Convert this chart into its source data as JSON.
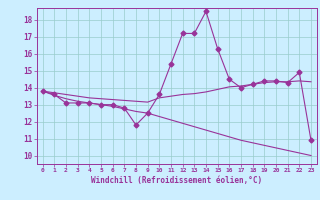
{
  "xlabel": "Windchill (Refroidissement éolien,°C)",
  "ylim": [
    9.5,
    18.7
  ],
  "yticks": [
    10,
    11,
    12,
    13,
    14,
    15,
    16,
    17,
    18
  ],
  "xlim": [
    -0.5,
    23.5
  ],
  "bg_color": "#cceeff",
  "line_color": "#993399",
  "grid_color": "#99cccc",
  "line1_x": [
    0,
    1,
    2,
    3,
    4,
    5,
    6,
    7,
    8,
    9,
    10,
    11,
    12,
    13,
    14,
    15,
    16,
    17,
    18,
    19,
    20,
    21,
    22,
    23
  ],
  "line1_y": [
    13.8,
    13.6,
    13.1,
    13.1,
    13.1,
    13.0,
    13.0,
    12.8,
    11.8,
    12.5,
    13.6,
    15.4,
    17.2,
    17.2,
    18.5,
    16.3,
    14.5,
    14.0,
    14.2,
    14.4,
    14.4,
    14.3,
    14.9,
    10.9
  ],
  "line2_x": [
    0,
    1,
    2,
    3,
    4,
    5,
    6,
    7,
    8,
    9,
    10,
    11,
    12,
    13,
    14,
    15,
    16,
    17,
    18,
    19,
    20,
    21,
    22,
    23
  ],
  "line2_y": [
    13.8,
    13.7,
    13.6,
    13.5,
    13.4,
    13.35,
    13.3,
    13.25,
    13.2,
    13.15,
    13.4,
    13.5,
    13.6,
    13.65,
    13.75,
    13.9,
    14.05,
    14.1,
    14.2,
    14.3,
    14.35,
    14.35,
    14.4,
    14.35
  ],
  "line3_x": [
    0,
    1,
    2,
    3,
    4,
    5,
    6,
    7,
    8,
    9,
    10,
    11,
    12,
    13,
    14,
    15,
    16,
    17,
    18,
    19,
    20,
    21,
    22,
    23
  ],
  "line3_y": [
    13.8,
    13.55,
    13.35,
    13.2,
    13.1,
    13.0,
    12.9,
    12.75,
    12.6,
    12.5,
    12.3,
    12.1,
    11.9,
    11.7,
    11.5,
    11.3,
    11.1,
    10.9,
    10.75,
    10.6,
    10.45,
    10.3,
    10.15,
    10.0
  ],
  "tick_labels": [
    "0",
    "1",
    "2",
    "3",
    "4",
    "5",
    "6",
    "7",
    "8",
    "9",
    "10",
    "11",
    "12",
    "13",
    "14",
    "15",
    "16",
    "17",
    "18",
    "19",
    "20",
    "21",
    "22",
    "23"
  ]
}
